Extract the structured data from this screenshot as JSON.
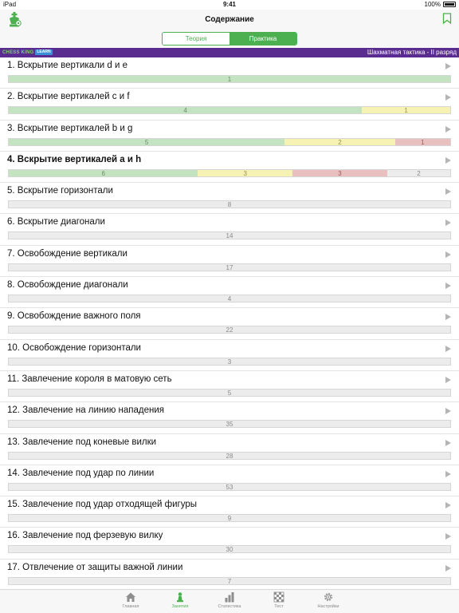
{
  "status": {
    "device": "iPad",
    "time": "9:41",
    "battery": "100%"
  },
  "nav": {
    "title": "Содержание"
  },
  "segments": [
    {
      "label": "Теория",
      "active": false
    },
    {
      "label": "Практика",
      "active": true
    }
  ],
  "banner": {
    "brand": "CHESS KING",
    "brand_tag": "LEARN",
    "course": "Шахматная тактика - II разряд"
  },
  "items": [
    {
      "title": "1. Вскрытие вертикали d и e",
      "bold": false,
      "progress": [
        {
          "kind": "green",
          "value": 1
        }
      ]
    },
    {
      "title": "2. Вскрытие вертикалей c и f",
      "bold": false,
      "progress": [
        {
          "kind": "green",
          "value": 4
        },
        {
          "kind": "yellow",
          "value": 1
        }
      ]
    },
    {
      "title": "3. Вскрытие вертикалей b и g",
      "bold": false,
      "progress": [
        {
          "kind": "green",
          "value": 5
        },
        {
          "kind": "yellow",
          "value": 2
        },
        {
          "kind": "red",
          "value": 1
        }
      ]
    },
    {
      "title": "4. Вскрытие вертикалей a и h",
      "bold": true,
      "progress": [
        {
          "kind": "green",
          "value": 6
        },
        {
          "kind": "yellow",
          "value": 3
        },
        {
          "kind": "red",
          "value": 3
        },
        {
          "kind": "gray",
          "value": 2
        }
      ]
    },
    {
      "title": "5. Вскрытие горизонтали",
      "bold": false,
      "progress": [
        {
          "kind": "gray",
          "value": 8
        }
      ]
    },
    {
      "title": "6. Вскрытие диагонали",
      "bold": false,
      "progress": [
        {
          "kind": "gray",
          "value": 14
        }
      ]
    },
    {
      "title": "7. Освобождение вертикали",
      "bold": false,
      "progress": [
        {
          "kind": "gray",
          "value": 17
        }
      ]
    },
    {
      "title": "8. Освобождение диагонали",
      "bold": false,
      "progress": [
        {
          "kind": "gray",
          "value": 4
        }
      ]
    },
    {
      "title": "9. Освобождение важного поля",
      "bold": false,
      "progress": [
        {
          "kind": "gray",
          "value": 22
        }
      ]
    },
    {
      "title": "10. Освобождение горизонтали",
      "bold": false,
      "progress": [
        {
          "kind": "gray",
          "value": 3
        }
      ]
    },
    {
      "title": "11. Завлечение короля в матовую сеть",
      "bold": false,
      "progress": [
        {
          "kind": "gray",
          "value": 5
        }
      ]
    },
    {
      "title": "12. Завлечение на линию нападения",
      "bold": false,
      "progress": [
        {
          "kind": "gray",
          "value": 35
        }
      ]
    },
    {
      "title": "13. Завлечение под коневые вилки",
      "bold": false,
      "progress": [
        {
          "kind": "gray",
          "value": 28
        }
      ]
    },
    {
      "title": "14. Завлечение под удар по линии",
      "bold": false,
      "progress": [
        {
          "kind": "gray",
          "value": 53
        }
      ]
    },
    {
      "title": "15. Завлечение под удар отходящей фигуры",
      "bold": false,
      "progress": [
        {
          "kind": "gray",
          "value": 9
        }
      ]
    },
    {
      "title": "16. Завлечение под ферзевую вилку",
      "bold": false,
      "progress": [
        {
          "kind": "gray",
          "value": 30
        }
      ]
    },
    {
      "title": "17. Отвлечение от защиты важной линии",
      "bold": false,
      "progress": [
        {
          "kind": "gray",
          "value": 7
        }
      ]
    }
  ],
  "tabs": [
    {
      "label": "Главная",
      "icon": "home-icon",
      "active": false
    },
    {
      "label": "Занятия",
      "icon": "pawn-icon",
      "active": true
    },
    {
      "label": "Статистика",
      "icon": "bar-chart-icon",
      "active": false
    },
    {
      "label": "Тест",
      "icon": "chessboard-icon",
      "active": false
    },
    {
      "label": "Настройки",
      "icon": "gear-icon",
      "active": false
    }
  ],
  "colors": {
    "accent": "#4caf50",
    "banner": "#5b2c8f",
    "green": "#c3e3c1",
    "yellow": "#f5f2b4",
    "red": "#e8c0c0",
    "gray": "#ececec"
  }
}
